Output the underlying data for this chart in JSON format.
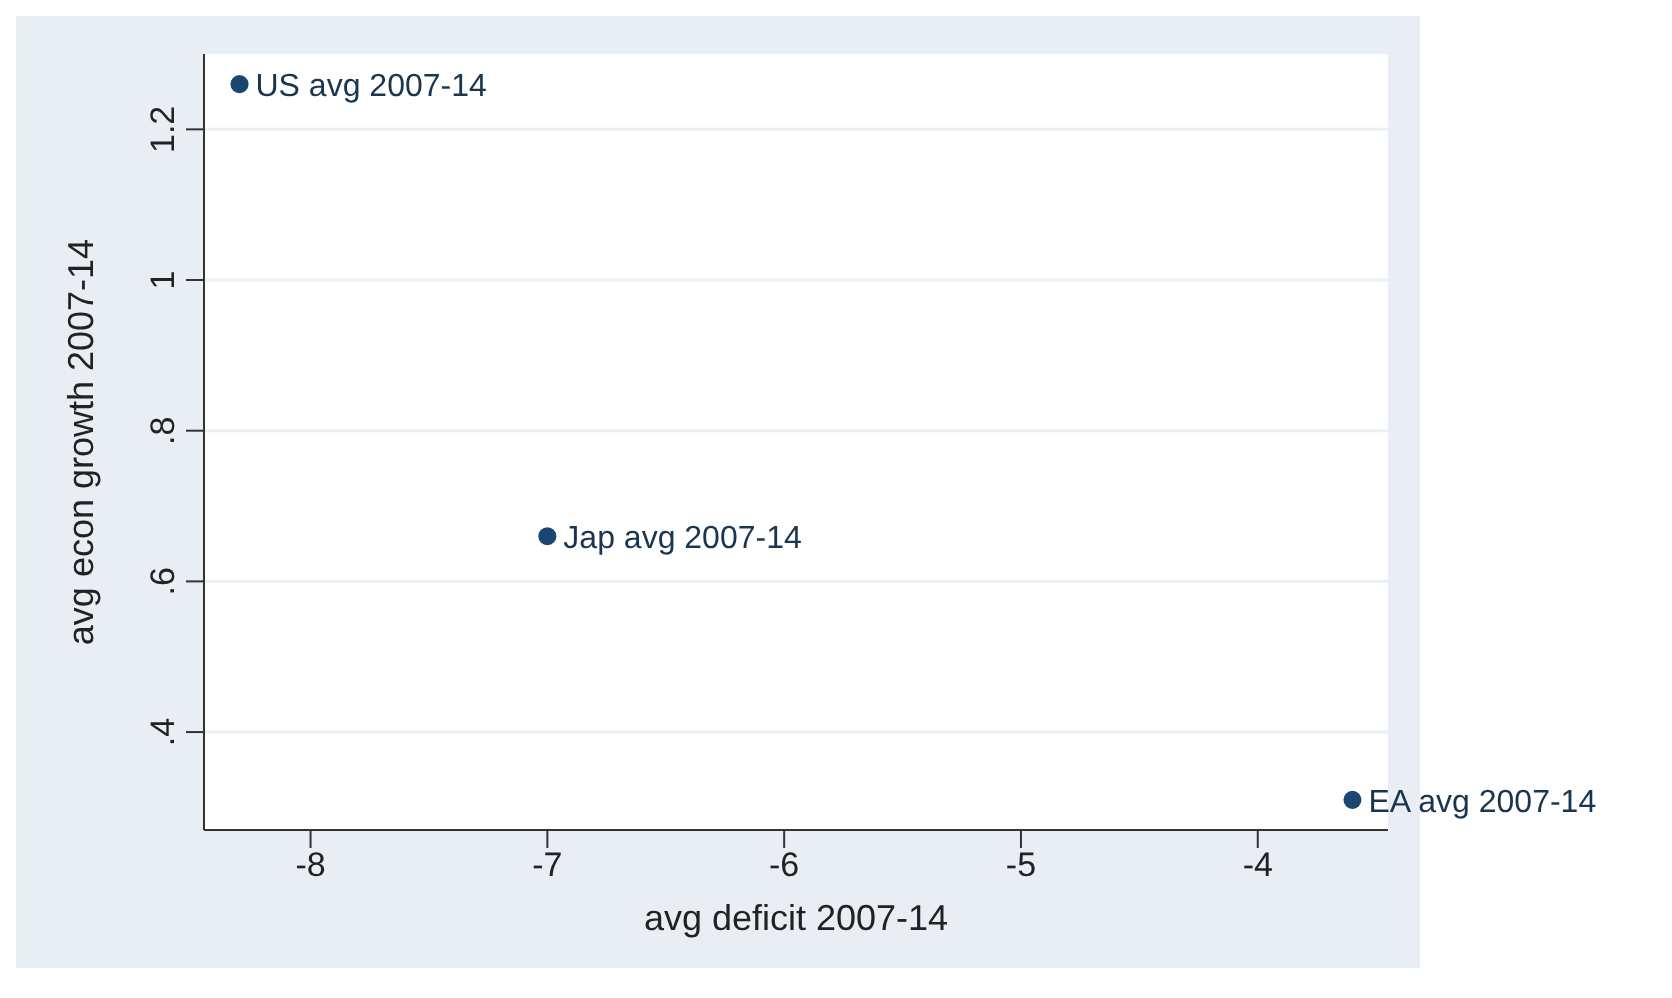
{
  "chart_data": {
    "type": "scatter",
    "xlabel": "avg deficit 2007-14",
    "ylabel": "avg econ growth 2007-14",
    "x": [
      -8.3,
      -7.0,
      -3.6
    ],
    "series": [
      {
        "color": "#1a476f",
        "values": [
          1.26,
          0.66,
          0.31
        ]
      }
    ],
    "xlim": [
      -8.45,
      -3.45
    ],
    "xticks": [
      -8,
      -7,
      -6,
      -5,
      -4
    ],
    "ylim": [
      0.27,
      1.3
    ],
    "yticks": [
      {
        "value": 0.4,
        "label": ".4"
      },
      {
        "value": 0.6,
        "label": ".6"
      },
      {
        "value": 0.8,
        "label": ".8"
      },
      {
        "value": 1,
        "label": "1"
      },
      {
        "value": 1.2,
        "label": "1.2"
      }
    ],
    "grid": "y",
    "marker": "circle",
    "legend": false,
    "annotations": [
      {
        "text": "US avg 2007-14",
        "x": -8.3,
        "y": 1.26
      },
      {
        "text": "Jap avg 2007-14",
        "x": -7.0,
        "y": 0.66
      },
      {
        "text": "EA avg 2007-14",
        "x": -3.6,
        "y": 0.31
      }
    ]
  }
}
